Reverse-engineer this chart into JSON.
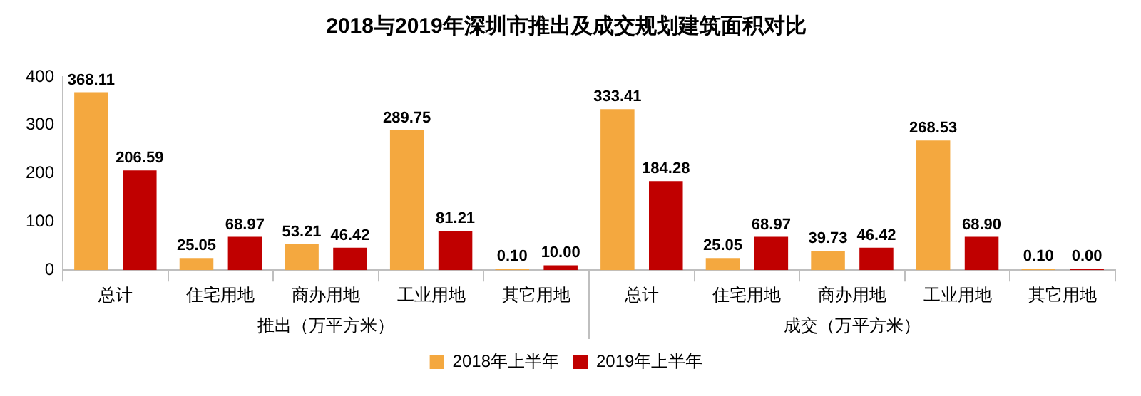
{
  "chart_data": {
    "type": "bar",
    "title": "2018与2019年深圳市推出及成交规划建筑面积对比",
    "categories": [
      "总计",
      "住宅用地",
      "商办用地",
      "工业用地",
      "其它用地",
      "总计",
      "住宅用地",
      "商办用地",
      "工业用地",
      "其它用地"
    ],
    "annotations": [
      "推出（万平方米）",
      "成交（万平方米）"
    ],
    "series": [
      {
        "name": "2018年上半年",
        "color": "#f4a83f",
        "values": [
          368.11,
          25.05,
          53.21,
          289.75,
          0.1,
          333.41,
          25.05,
          39.73,
          268.53,
          0.1
        ],
        "value_labels": [
          "368.11",
          "25.05",
          "53.21",
          "289.75",
          "0.10",
          "333.41",
          "25.05",
          "39.73",
          "268.53",
          "0.10"
        ]
      },
      {
        "name": "2019年上半年",
        "color": "#c00000",
        "values": [
          206.59,
          68.97,
          46.42,
          81.21,
          10.0,
          184.28,
          68.97,
          46.42,
          68.9,
          0.0
        ],
        "value_labels": [
          "206.59",
          "68.97",
          "46.42",
          "81.21",
          "10.00",
          "184.28",
          "68.97",
          "46.42",
          "68.90",
          "0.00"
        ]
      }
    ],
    "ylim": [
      0,
      400
    ],
    "yticks": [
      0,
      100,
      200,
      300,
      400
    ],
    "grid": false,
    "legend": "bottom"
  }
}
